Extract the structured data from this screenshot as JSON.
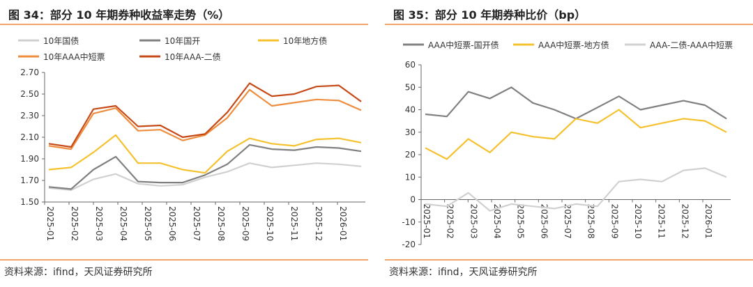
{
  "panels": [
    {
      "title": "图 34：部分 10 年期券种收益率走势（%）",
      "source": "资料来源：ifind，天风证券研究所"
    },
    {
      "title": "图 35：部分 10 年期券种比价（bp）",
      "source": "资料来源：ifind，天风证券研究所"
    }
  ],
  "chart_data": [
    {
      "type": "line",
      "title": "图 34：部分 10 年期券种收益率走势（%）",
      "x_ticks": [
        "2025-01",
        "2025-02",
        "2025-03",
        "2025-04",
        "2025-05",
        "2025-06",
        "2025-07",
        "2025-08",
        "2025-09",
        "2025-10",
        "2025-11",
        "2025-12",
        "2026-01"
      ],
      "ylim": [
        1.5,
        2.7
      ],
      "y_ticks": [
        "1.50",
        "1.70",
        "1.90",
        "2.10",
        "2.30",
        "2.50",
        "2.70"
      ],
      "grid": false,
      "legend_position": "top",
      "series": [
        {
          "name": "10年国债",
          "color": "#d0d0d0",
          "values": [
            1.63,
            1.61,
            1.71,
            1.76,
            1.67,
            1.65,
            1.66,
            1.73,
            1.78,
            1.86,
            1.82,
            1.84,
            1.86,
            1.85,
            1.83
          ]
        },
        {
          "name": "10年国开",
          "color": "#808080",
          "values": [
            1.64,
            1.62,
            1.8,
            1.92,
            1.69,
            1.68,
            1.68,
            1.75,
            1.85,
            2.03,
            1.99,
            1.98,
            2.01,
            2.0,
            1.97
          ]
        },
        {
          "name": "10年地方债",
          "color": "#f5c12e",
          "values": [
            1.8,
            1.82,
            1.96,
            2.12,
            1.86,
            1.86,
            1.8,
            1.77,
            1.97,
            2.09,
            2.04,
            2.02,
            2.08,
            2.09,
            2.05
          ]
        },
        {
          "name": "10年AAA中短票",
          "color": "#ee8d3e",
          "values": [
            2.02,
            1.99,
            2.32,
            2.37,
            2.16,
            2.17,
            2.07,
            2.12,
            2.28,
            2.54,
            2.39,
            2.42,
            2.45,
            2.44,
            2.35
          ]
        },
        {
          "name": "10年AAA-二债",
          "color": "#c64a17",
          "values": [
            2.04,
            2.01,
            2.36,
            2.39,
            2.2,
            2.21,
            2.1,
            2.13,
            2.33,
            2.6,
            2.48,
            2.5,
            2.57,
            2.58,
            2.43
          ]
        }
      ]
    },
    {
      "type": "line",
      "title": "图 35：部分 10 年期券种比价（bp）",
      "x_ticks": [
        "2025-01",
        "2025-02",
        "2025-03",
        "2025-04",
        "2025-05",
        "2025-06",
        "2025-07",
        "2025-08",
        "2025-09",
        "2025-10",
        "2025-11",
        "2025-12",
        "2026-01"
      ],
      "ylim": [
        -20,
        60
      ],
      "y_ticks": [
        "-20",
        "-10",
        "0",
        "10",
        "20",
        "30",
        "40",
        "50",
        "60"
      ],
      "grid": false,
      "legend_position": "top",
      "series": [
        {
          "name": "AAA中短票-国开债",
          "color": "#808080",
          "values": [
            38,
            37,
            48,
            45,
            50,
            43,
            40,
            36,
            41,
            46,
            40,
            42,
            44,
            42,
            36
          ]
        },
        {
          "name": "AAA中短票-地方债",
          "color": "#f5c12e",
          "values": [
            23,
            18,
            27,
            21,
            30,
            28,
            27,
            36,
            34,
            40,
            32,
            34,
            36,
            35,
            30
          ]
        },
        {
          "name": "AAA-二债-AAA中短票",
          "color": "#d0d0d0",
          "values": [
            -2,
            -3,
            3,
            -5,
            -2,
            -3,
            -4,
            -2,
            -3,
            8,
            9,
            8,
            13,
            14,
            10
          ]
        }
      ]
    }
  ]
}
